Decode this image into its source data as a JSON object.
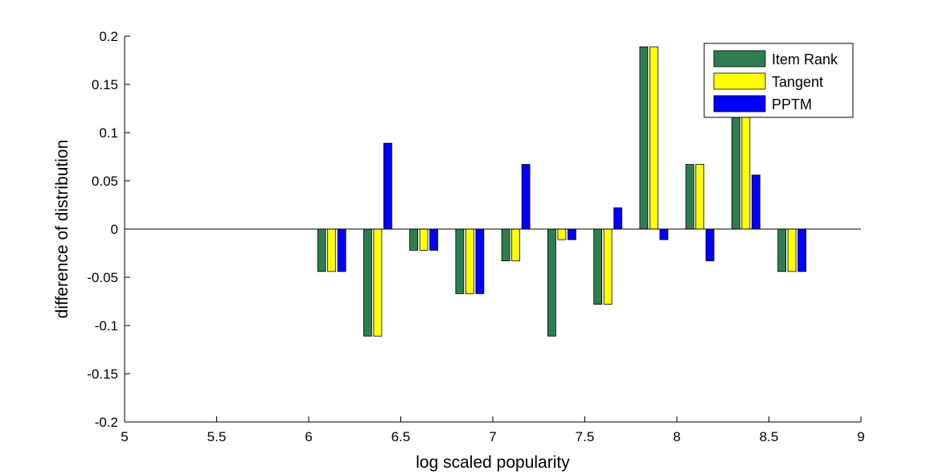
{
  "chart_data": {
    "type": "bar",
    "title": "",
    "xlabel": "log scaled popularity",
    "ylabel": "difference of distribution",
    "xlim": [
      5,
      9
    ],
    "ylim": [
      -0.2,
      0.2
    ],
    "x_ticks": [
      5,
      5.5,
      6,
      6.5,
      7,
      7.5,
      8,
      8.5,
      9
    ],
    "x_tick_labels": [
      "5",
      "5.5",
      "6",
      "6.5",
      "7",
      "7.5",
      "8",
      "8.5",
      "9"
    ],
    "y_ticks": [
      -0.2,
      -0.15,
      -0.1,
      -0.05,
      0,
      0.05,
      0.1,
      0.15,
      0.2
    ],
    "y_tick_labels": [
      "-0.2",
      "-0.15",
      "-0.1",
      "-0.05",
      "0",
      "0.05",
      "0.1",
      "0.15",
      "0.2"
    ],
    "grid": false,
    "legend_position": "top-right",
    "x": [
      6.125,
      6.375,
      6.625,
      6.875,
      7.125,
      7.375,
      7.625,
      7.875,
      8.125,
      8.375,
      8.625
    ],
    "series": [
      {
        "name": "Item Rank",
        "color": "#2e7d50",
        "values": [
          -0.044,
          -0.111,
          -0.022,
          -0.067,
          -0.033,
          -0.111,
          -0.078,
          0.189,
          0.067,
          0.122,
          -0.044
        ]
      },
      {
        "name": "Tangent",
        "color": "#ffff00",
        "values": [
          -0.044,
          -0.111,
          -0.022,
          -0.067,
          -0.033,
          -0.011,
          -0.078,
          0.189,
          0.067,
          0.122,
          -0.044
        ]
      },
      {
        "name": "PPTM",
        "color": "#0000ff",
        "values": [
          -0.044,
          0.089,
          -0.022,
          -0.067,
          0.067,
          -0.011,
          0.022,
          -0.011,
          -0.033,
          0.056,
          -0.044
        ]
      }
    ]
  }
}
